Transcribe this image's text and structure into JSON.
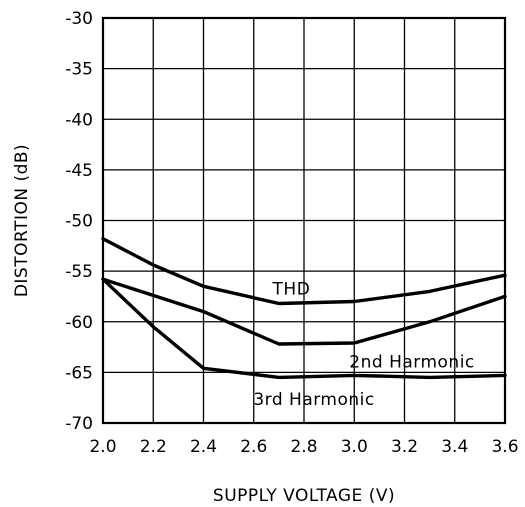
{
  "chart_data": {
    "type": "line",
    "title": "",
    "xlabel": "SUPPLY VOLTAGE (V)",
    "ylabel": "DISTORTION (dB)",
    "xlim": [
      2.0,
      3.6
    ],
    "ylim": [
      -70,
      -30
    ],
    "grid": true,
    "x_ticks": [
      "2.0",
      "2.2",
      "2.4",
      "2.6",
      "2.8",
      "3.0",
      "3.2",
      "3.4",
      "3.6"
    ],
    "y_ticks": [
      "-30",
      "-35",
      "-40",
      "-45",
      "-50",
      "-55",
      "-60",
      "-65",
      "-70"
    ],
    "series": [
      {
        "name": "THD",
        "x": [
          2.0,
          2.2,
          2.4,
          2.7,
          3.0,
          3.3,
          3.6
        ],
        "y": [
          -51.8,
          -54.4,
          -56.5,
          -58.2,
          -58.0,
          -57.0,
          -55.4
        ]
      },
      {
        "name": "2nd Harmonic",
        "x": [
          2.0,
          2.4,
          2.7,
          3.0,
          3.3,
          3.6
        ],
        "y": [
          -55.8,
          -59.0,
          -62.2,
          -62.1,
          -60.0,
          -57.5
        ]
      },
      {
        "name": "3rd Harmonic",
        "x": [
          2.0,
          2.2,
          2.4,
          2.7,
          3.0,
          3.3,
          3.6
        ],
        "y": [
          -55.8,
          -60.5,
          -64.6,
          -65.5,
          -65.3,
          -65.5,
          -65.3
        ]
      }
    ],
    "annotations": [
      {
        "text": "THD",
        "x": 2.75,
        "y": -57.3
      },
      {
        "text": "2nd Harmonic",
        "x": 3.23,
        "y": -64.5
      },
      {
        "text": "3rd Harmonic",
        "x": 2.84,
        "y": -68.2
      }
    ],
    "line_color": "#000000"
  }
}
